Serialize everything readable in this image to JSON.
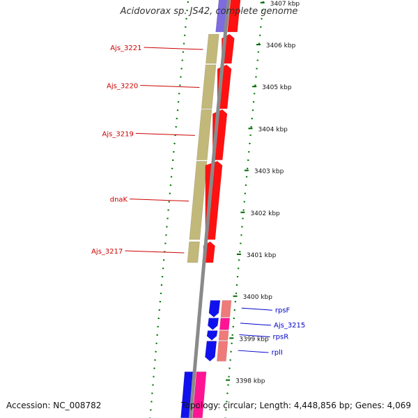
{
  "title": "Acidovorax sp. JS42, complete genome",
  "footer": {
    "accession_label": "Accession:",
    "accession": "NC_008782",
    "topology_label": "Topology:",
    "topology": "circular",
    "length_label": "Length:",
    "length": "4,448,856 bp",
    "genes_label": "Genes:",
    "genes": "4,069"
  },
  "colors": {
    "backbone": "#8a8a8a",
    "dots": "#007a00",
    "ticks": "#006600",
    "label_red": "#cc0000",
    "label_blue": "#0000cc",
    "cds_left": "#c2b87a",
    "cds_right_red": "#ff1111",
    "cds_right_blue": "#1111ee",
    "salmon": "#ee7a7a",
    "pink": "#ff1493",
    "purple": "#7d6be0"
  },
  "scale": {
    "unit": "kbp",
    "ticks": [
      {
        "kbp": 3407,
        "label": "3407 kbp"
      },
      {
        "kbp": 3406,
        "label": "3406 kbp"
      },
      {
        "kbp": 3405,
        "label": "3405 kbp"
      },
      {
        "kbp": 3404,
        "label": "3404 kbp"
      },
      {
        "kbp": 3403,
        "label": "3403 kbp"
      },
      {
        "kbp": 3402,
        "label": "3402 kbp"
      },
      {
        "kbp": 3401,
        "label": "3401 kbp"
      },
      {
        "kbp": 3400,
        "label": "3400 kbp"
      },
      {
        "kbp": 3399,
        "label": "3399 kbp"
      },
      {
        "kbp": 3398,
        "label": "3398 kbp"
      }
    ]
  },
  "genes_left": [
    {
      "name": "Ajs_3221",
      "start_kbp": 3405.55,
      "end_kbp": 3406.25,
      "color_key": "label_red"
    },
    {
      "name": "Ajs_3220",
      "start_kbp": 3404.47,
      "end_kbp": 3405.52,
      "color_key": "label_red"
    },
    {
      "name": "Ajs_3219",
      "start_kbp": 3403.25,
      "end_kbp": 3404.45,
      "color_key": "label_red"
    },
    {
      "name": "dnaK",
      "start_kbp": 3401.35,
      "end_kbp": 3403.22,
      "color_key": "label_red"
    },
    {
      "name": "Ajs_3217",
      "start_kbp": 3400.8,
      "end_kbp": 3401.3,
      "color_key": "label_red"
    }
  ],
  "genes_right": [
    {
      "name": "rpsF",
      "start_kbp": 3399.5,
      "end_kbp": 3399.9,
      "color_key": "label_blue"
    },
    {
      "name": "Ajs_3215",
      "start_kbp": 3399.2,
      "end_kbp": 3399.48,
      "color_key": "label_blue"
    },
    {
      "name": "rpsR",
      "start_kbp": 3398.95,
      "end_kbp": 3399.18,
      "color_key": "label_blue"
    },
    {
      "name": "rplI",
      "start_kbp": 3398.45,
      "end_kbp": 3398.93,
      "color_key": "label_blue"
    }
  ],
  "partial_features": [
    {
      "strand": "left",
      "color_key": "purple",
      "start_kbp": 3406.3,
      "end_kbp": 3407.2
    },
    {
      "strand": "right",
      "color_key": "cds_right_red",
      "start_kbp": 3406.3,
      "end_kbp": 3407.2
    },
    {
      "strand": "left",
      "color_key": "cds_right_blue",
      "start_kbp": 3397.1,
      "end_kbp": 3398.2
    },
    {
      "strand": "right",
      "color_key": "pink",
      "start_kbp": 3397.1,
      "end_kbp": 3398.2
    }
  ]
}
